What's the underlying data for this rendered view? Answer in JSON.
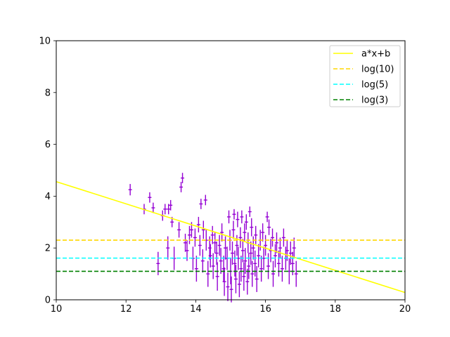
{
  "chart_data": {
    "type": "scatter",
    "title": "",
    "xlabel": "",
    "ylabel": "",
    "xlim": [
      10,
      20
    ],
    "ylim": [
      0,
      10
    ],
    "xticks": [
      10,
      12,
      14,
      16,
      18,
      20
    ],
    "yticks": [
      0,
      2,
      4,
      6,
      8,
      10
    ],
    "grid": false,
    "legend_position": "top-right",
    "series": [
      {
        "name": "a*x+b",
        "kind": "line",
        "color": "#ffff00",
        "style": "solid",
        "x": [
          10,
          20
        ],
        "y": [
          4.56,
          0.28
        ]
      },
      {
        "name": "log(10)",
        "kind": "hline",
        "color": "#ffd700",
        "style": "dashed",
        "y": 2.303
      },
      {
        "name": "log(5)",
        "kind": "hline",
        "color": "#00ffff",
        "style": "dashed",
        "y": 1.609
      },
      {
        "name": "log(3)",
        "kind": "hline",
        "color": "#008000",
        "style": "dashed",
        "y": 1.099
      }
    ],
    "errorbar_series": {
      "color": "#9400d3",
      "points": [
        [
          12.12,
          4.25,
          0.22,
          0.05
        ],
        [
          12.52,
          3.5,
          0.2,
          0.05
        ],
        [
          12.68,
          3.95,
          0.2,
          0.05
        ],
        [
          12.78,
          3.55,
          0.2,
          0.05
        ],
        [
          12.92,
          1.4,
          0.45,
          0.05
        ],
        [
          13.05,
          3.25,
          0.2,
          0.05
        ],
        [
          13.12,
          3.5,
          0.2,
          0.05
        ],
        [
          13.22,
          3.5,
          0.2,
          0.05
        ],
        [
          13.28,
          3.65,
          0.2,
          0.05
        ],
        [
          13.32,
          3.0,
          0.2,
          0.05
        ],
        [
          13.2,
          2.0,
          0.45,
          0.05
        ],
        [
          13.38,
          1.6,
          0.45,
          0.05
        ],
        [
          13.52,
          2.7,
          0.3,
          0.05
        ],
        [
          13.58,
          4.35,
          0.2,
          0.05
        ],
        [
          13.62,
          4.7,
          0.2,
          0.05
        ],
        [
          13.7,
          2.2,
          0.35,
          0.05
        ],
        [
          13.75,
          1.9,
          0.4,
          0.05
        ],
        [
          13.82,
          2.5,
          0.35,
          0.05
        ],
        [
          13.88,
          2.7,
          0.3,
          0.05
        ],
        [
          13.92,
          1.6,
          0.45,
          0.05
        ],
        [
          13.98,
          2.4,
          0.35,
          0.05
        ],
        [
          14.02,
          1.2,
          0.5,
          0.05
        ],
        [
          14.08,
          2.9,
          0.3,
          0.05
        ],
        [
          14.12,
          2.1,
          0.4,
          0.05
        ],
        [
          14.15,
          3.7,
          0.2,
          0.05
        ],
        [
          14.2,
          1.5,
          0.45,
          0.05
        ],
        [
          14.22,
          2.7,
          0.35,
          0.05
        ],
        [
          14.28,
          3.85,
          0.2,
          0.05
        ],
        [
          14.3,
          2.3,
          0.4,
          0.05
        ],
        [
          14.35,
          1.0,
          0.5,
          0.05
        ],
        [
          14.4,
          2.0,
          0.45,
          0.05
        ],
        [
          14.42,
          1.7,
          0.45,
          0.05
        ],
        [
          14.48,
          2.5,
          0.35,
          0.05
        ],
        [
          14.5,
          1.3,
          0.5,
          0.05
        ],
        [
          14.55,
          2.2,
          0.4,
          0.05
        ],
        [
          14.6,
          1.8,
          0.45,
          0.05
        ],
        [
          14.62,
          0.9,
          0.55,
          0.05
        ],
        [
          14.68,
          2.1,
          0.4,
          0.05
        ],
        [
          14.72,
          1.5,
          0.5,
          0.05
        ],
        [
          14.75,
          2.6,
          0.35,
          0.05
        ],
        [
          14.8,
          1.2,
          0.5,
          0.05
        ],
        [
          14.82,
          0.7,
          0.55,
          0.05
        ],
        [
          14.85,
          2.0,
          0.45,
          0.05
        ],
        [
          14.9,
          1.6,
          0.45,
          0.05
        ],
        [
          14.92,
          0.5,
          0.55,
          0.05
        ],
        [
          14.95,
          3.2,
          0.25,
          0.05
        ],
        [
          14.98,
          2.3,
          0.4,
          0.05
        ],
        [
          15.0,
          1.1,
          0.5,
          0.05
        ],
        [
          15.02,
          0.4,
          0.5,
          0.05
        ],
        [
          15.05,
          1.8,
          0.45,
          0.05
        ],
        [
          15.08,
          2.7,
          0.35,
          0.05
        ],
        [
          15.1,
          3.3,
          0.2,
          0.05
        ],
        [
          15.12,
          1.4,
          0.5,
          0.05
        ],
        [
          15.15,
          0.8,
          0.55,
          0.05
        ],
        [
          15.18,
          2.1,
          0.4,
          0.05
        ],
        [
          15.2,
          3.1,
          0.3,
          0.05
        ],
        [
          15.22,
          1.6,
          0.45,
          0.05
        ],
        [
          15.25,
          0.6,
          0.5,
          0.05
        ],
        [
          15.28,
          2.4,
          0.4,
          0.05
        ],
        [
          15.3,
          1.2,
          0.5,
          0.05
        ],
        [
          15.32,
          3.2,
          0.25,
          0.05
        ],
        [
          15.35,
          1.9,
          0.45,
          0.05
        ],
        [
          15.38,
          0.9,
          0.55,
          0.05
        ],
        [
          15.4,
          2.6,
          0.35,
          0.05
        ],
        [
          15.42,
          1.5,
          0.5,
          0.05
        ],
        [
          15.45,
          3.0,
          0.3,
          0.05
        ],
        [
          15.48,
          0.7,
          0.5,
          0.05
        ],
        [
          15.5,
          2.2,
          0.4,
          0.05
        ],
        [
          15.52,
          1.3,
          0.5,
          0.05
        ],
        [
          15.55,
          3.4,
          0.2,
          0.05
        ],
        [
          15.58,
          1.8,
          0.45,
          0.05
        ],
        [
          15.6,
          2.8,
          0.35,
          0.05
        ],
        [
          15.62,
          1.0,
          0.5,
          0.05
        ],
        [
          15.65,
          2.0,
          0.45,
          0.05
        ],
        [
          15.7,
          1.4,
          0.5,
          0.05
        ],
        [
          15.72,
          2.5,
          0.35,
          0.05
        ],
        [
          15.75,
          0.8,
          0.5,
          0.05
        ],
        [
          15.8,
          1.7,
          0.45,
          0.05
        ],
        [
          15.85,
          2.3,
          0.4,
          0.05
        ],
        [
          15.88,
          1.2,
          0.5,
          0.05
        ],
        [
          15.92,
          2.6,
          0.35,
          0.05
        ],
        [
          15.95,
          1.6,
          0.45,
          0.05
        ],
        [
          16.0,
          2.1,
          0.4,
          0.05
        ],
        [
          16.05,
          3.2,
          0.2,
          0.05
        ],
        [
          16.08,
          1.3,
          0.5,
          0.05
        ],
        [
          16.1,
          2.8,
          0.3,
          0.05
        ],
        [
          16.15,
          1.9,
          0.45,
          0.05
        ],
        [
          16.2,
          2.4,
          0.35,
          0.05
        ],
        [
          16.22,
          1.0,
          0.5,
          0.05
        ],
        [
          16.28,
          1.7,
          0.45,
          0.05
        ],
        [
          16.32,
          2.2,
          0.4,
          0.05
        ],
        [
          16.38,
          1.4,
          0.5,
          0.05
        ],
        [
          16.42,
          2.0,
          0.4,
          0.05
        ],
        [
          16.48,
          1.2,
          0.5,
          0.05
        ],
        [
          16.52,
          2.4,
          0.35,
          0.05
        ],
        [
          16.58,
          1.6,
          0.45,
          0.05
        ],
        [
          16.62,
          1.9,
          0.4,
          0.05
        ],
        [
          16.68,
          1.1,
          0.5,
          0.05
        ],
        [
          16.72,
          1.8,
          0.45,
          0.05
        ],
        [
          16.78,
          1.4,
          0.45,
          0.05
        ],
        [
          16.82,
          2.0,
          0.4,
          0.05
        ],
        [
          16.88,
          1.0,
          0.5,
          0.05
        ]
      ]
    }
  }
}
